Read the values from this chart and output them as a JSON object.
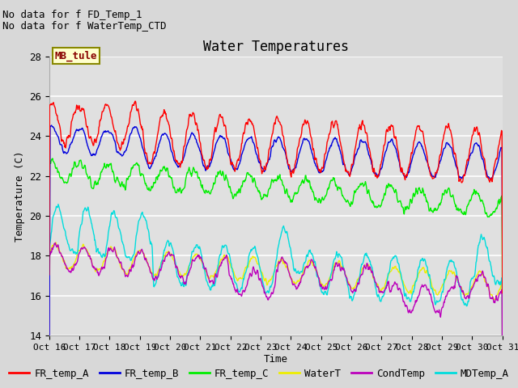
{
  "title": "Water Temperatures",
  "xlabel": "Time",
  "ylabel": "Temperature (C)",
  "ylim": [
    14,
    28
  ],
  "yticks": [
    14,
    16,
    18,
    20,
    22,
    24,
    26,
    28
  ],
  "xtick_labels": [
    "Oct 16",
    "Oct 17",
    "Oct 18",
    "Oct 19",
    "Oct 20",
    "Oct 21",
    "Oct 22",
    "Oct 23",
    "Oct 24",
    "Oct 25",
    "Oct 26",
    "Oct 27",
    "Oct 28",
    "Oct 29",
    "Oct 30",
    "Oct 31"
  ],
  "colors": {
    "FR_temp_A": "#ff0000",
    "FR_temp_B": "#0000dd",
    "FR_temp_C": "#00ee00",
    "WaterT": "#eeee00",
    "CondTemp": "#bb00bb",
    "MDTemp_A": "#00dddd"
  },
  "annotations": [
    "No data for f FD_Temp_1",
    "No data for f WaterTemp_CTD"
  ],
  "box_label": "MB_tule",
  "fig_bg": "#d8d8d8",
  "plot_bg": "#d8d8d8",
  "title_fontsize": 12,
  "axis_fontsize": 9,
  "legend_fontsize": 9,
  "annotation_fontsize": 9
}
